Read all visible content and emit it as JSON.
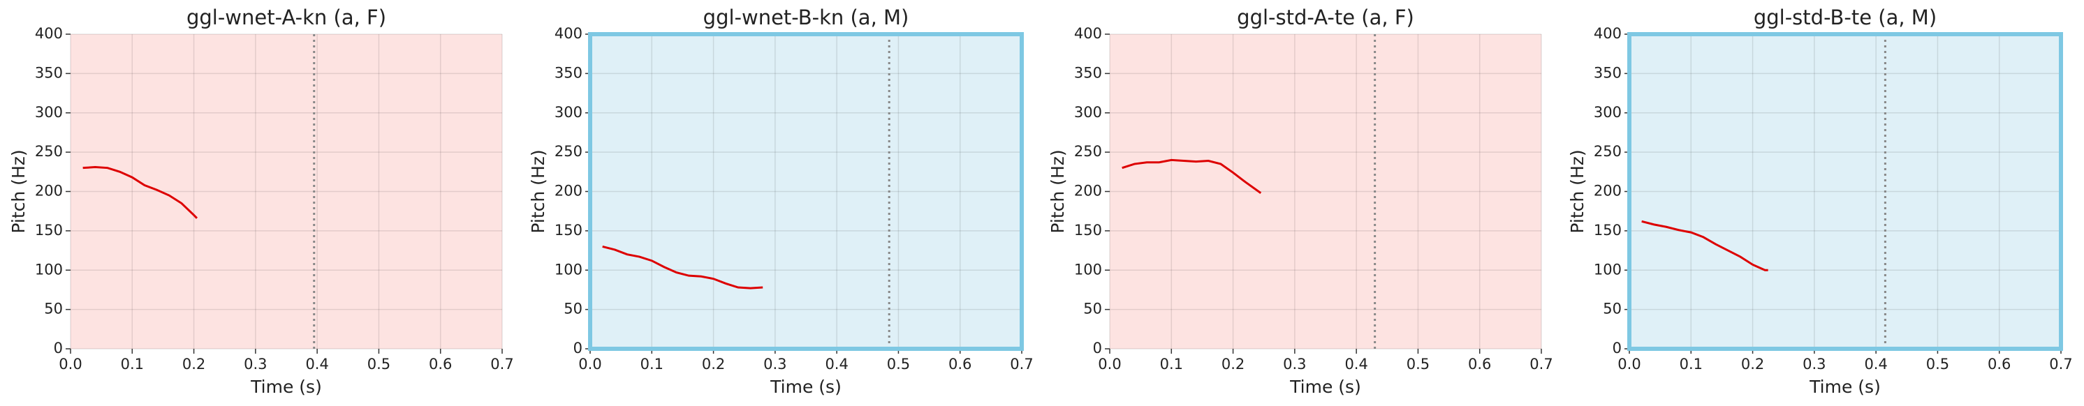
{
  "chart_data": [
    {
      "type": "line",
      "title": "ggl-wnet-A-kn (a, F)",
      "x_label": "Time (s)",
      "y_label": "Pitch (Hz)",
      "x": [
        0.02,
        0.04,
        0.06,
        0.08,
        0.1,
        0.12,
        0.14,
        0.16,
        0.18,
        0.2,
        0.205
      ],
      "values": [
        230,
        231,
        230,
        225,
        218,
        208,
        202,
        195,
        185,
        170,
        166
      ],
      "color": "#dd0000",
      "vline": 0.395,
      "background": "#fde3e1",
      "grid": true,
      "xlim": [
        0,
        0.7
      ],
      "ylim": [
        0,
        400
      ],
      "xticks": [
        {
          "value": 0,
          "label": "0.0"
        },
        0.1,
        0.2,
        0.3,
        0.4,
        0.5,
        0.6,
        0.7
      ],
      "yticks": [
        0,
        50,
        100,
        150,
        200,
        250,
        300,
        350,
        400
      ]
    },
    {
      "type": "line",
      "title": "ggl-wnet-B-kn (a, M)",
      "x_label": "Time (s)",
      "y_label": "Pitch (Hz)",
      "x": [
        0.02,
        0.04,
        0.06,
        0.08,
        0.1,
        0.12,
        0.14,
        0.16,
        0.18,
        0.2,
        0.22,
        0.24,
        0.26,
        0.28
      ],
      "values": [
        130,
        126,
        120,
        117,
        112,
        104,
        97,
        93,
        92,
        89,
        83,
        78,
        77,
        78
      ],
      "color": "#dd0000",
      "vline": 0.485,
      "background": "#dff0f7",
      "border_color": "#7ec8e3",
      "grid": true,
      "xlim": [
        0,
        0.7
      ],
      "ylim": [
        0,
        400
      ],
      "xticks": [
        {
          "value": 0,
          "label": "0.0"
        },
        0.1,
        0.2,
        0.3,
        0.4,
        0.5,
        0.6,
        0.7
      ],
      "yticks": [
        0,
        50,
        100,
        150,
        200,
        250,
        300,
        350,
        400
      ]
    },
    {
      "type": "line",
      "title": "ggl-std-A-te (a, F)",
      "x_label": "Time (s)",
      "y_label": "Pitch (Hz)",
      "x": [
        0.02,
        0.04,
        0.06,
        0.08,
        0.1,
        0.12,
        0.14,
        0.16,
        0.18,
        0.2,
        0.22,
        0.245
      ],
      "values": [
        230,
        235,
        237,
        237,
        240,
        239,
        238,
        239,
        235,
        224,
        212,
        198
      ],
      "color": "#dd0000",
      "vline": 0.43,
      "background": "#fde3e1",
      "grid": true,
      "xlim": [
        0,
        0.7
      ],
      "ylim": [
        0,
        400
      ],
      "xticks": [
        {
          "value": 0,
          "label": "0.0"
        },
        0.1,
        0.2,
        0.3,
        0.4,
        0.5,
        0.6,
        0.7
      ],
      "yticks": [
        0,
        50,
        100,
        150,
        200,
        250,
        300,
        350,
        400
      ]
    },
    {
      "type": "line",
      "title": "ggl-std-B-te (a, M)",
      "x_label": "Time (s)",
      "y_label": "Pitch (Hz)",
      "x": [
        0.02,
        0.04,
        0.06,
        0.08,
        0.1,
        0.12,
        0.14,
        0.16,
        0.18,
        0.2,
        0.22,
        0.225
      ],
      "values": [
        162,
        158,
        155,
        151,
        148,
        142,
        133,
        125,
        117,
        107,
        100,
        100
      ],
      "color": "#dd0000",
      "vline": 0.415,
      "background": "#dff0f7",
      "border_color": "#7ec8e3",
      "grid": true,
      "xlim": [
        0,
        0.7
      ],
      "ylim": [
        0,
        400
      ],
      "xticks": [
        {
          "value": 0,
          "label": "0.0"
        },
        0.1,
        0.2,
        0.3,
        0.4,
        0.5,
        0.6,
        0.7
      ],
      "yticks": [
        0,
        50,
        100,
        150,
        200,
        250,
        300,
        350,
        400
      ]
    }
  ]
}
